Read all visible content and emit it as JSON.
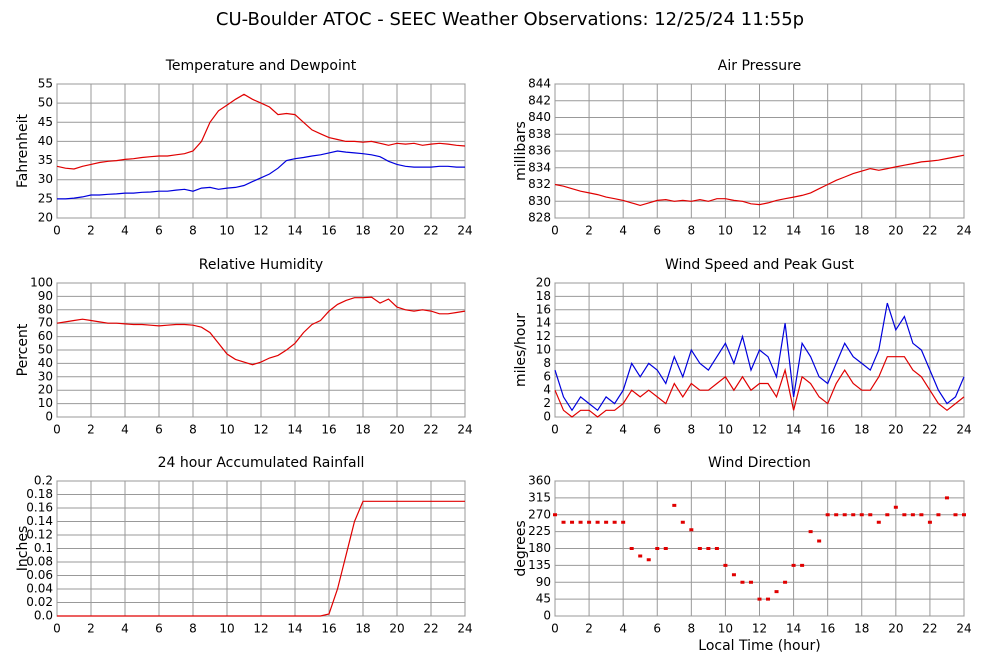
{
  "title": "CU-Boulder ATOC - SEEC Weather Observations: 12/25/24 11:55p",
  "chart_data": [
    {
      "type": "line",
      "title": "Temperature and Dewpoint",
      "ylabel": "Fahrenheit",
      "x": [
        0,
        0.5,
        1,
        1.5,
        2,
        2.5,
        3,
        3.5,
        4,
        4.5,
        5,
        5.5,
        6,
        6.5,
        7,
        7.5,
        8,
        8.5,
        9,
        9.5,
        10,
        10.5,
        11,
        11.5,
        12,
        12.5,
        13,
        13.5,
        14,
        14.5,
        15,
        15.5,
        16,
        16.5,
        17,
        17.5,
        18,
        18.5,
        19,
        19.5,
        20,
        20.5,
        21,
        21.5,
        22,
        22.5,
        23,
        23.5,
        24
      ],
      "series": [
        {
          "color": "#e00000",
          "values": [
            33.5,
            33,
            32.8,
            33.5,
            34,
            34.5,
            34.8,
            35,
            35.3,
            35.5,
            35.8,
            36,
            36.2,
            36.2,
            36.5,
            36.8,
            37.5,
            40,
            45,
            48,
            49.5,
            51,
            52.3,
            51,
            50,
            49,
            47,
            47.3,
            47,
            45,
            43,
            42,
            41,
            40.5,
            40,
            40,
            39.8,
            40,
            39.5,
            39,
            39.5,
            39.3,
            39.5,
            39,
            39.3,
            39.5,
            39.3,
            39,
            38.8
          ]
        },
        {
          "color": "#0000dd",
          "values": [
            25,
            25,
            25.2,
            25.5,
            26,
            26,
            26.2,
            26.3,
            26.5,
            26.5,
            26.7,
            26.8,
            27,
            27,
            27.3,
            27.5,
            27,
            27.8,
            28,
            27.5,
            27.8,
            28,
            28.5,
            29.5,
            30.5,
            31.5,
            33,
            35,
            35.5,
            35.8,
            36.2,
            36.5,
            37,
            37.5,
            37.2,
            37,
            36.8,
            36.5,
            36,
            34.8,
            34,
            33.5,
            33.3,
            33.3,
            33.3,
            33.5,
            33.5,
            33.3,
            33.3
          ]
        }
      ],
      "xlim": [
        0,
        24
      ],
      "xticks": [
        0,
        2,
        4,
        6,
        8,
        10,
        12,
        14,
        16,
        18,
        20,
        22,
        24
      ],
      "ylim": [
        20,
        55
      ],
      "yticks": [
        20,
        25,
        30,
        35,
        40,
        45,
        50,
        55
      ],
      "grid": true
    },
    {
      "type": "line",
      "title": "Air Pressure",
      "ylabel": "millibars",
      "x": [
        0,
        0.5,
        1,
        1.5,
        2,
        2.5,
        3,
        3.5,
        4,
        4.5,
        5,
        5.5,
        6,
        6.5,
        7,
        7.5,
        8,
        8.5,
        9,
        9.5,
        10,
        10.5,
        11,
        11.5,
        12,
        12.5,
        13,
        13.5,
        14,
        14.5,
        15,
        15.5,
        16,
        16.5,
        17,
        17.5,
        18,
        18.5,
        19,
        19.5,
        20,
        20.5,
        21,
        21.5,
        22,
        22.5,
        23,
        23.5,
        24
      ],
      "series": [
        {
          "color": "#e00000",
          "values": [
            832,
            831.8,
            831.5,
            831.2,
            831,
            830.8,
            830.5,
            830.3,
            830.1,
            829.8,
            829.5,
            829.8,
            830.1,
            830.2,
            830,
            830.1,
            830,
            830.2,
            830,
            830.3,
            830.3,
            830.1,
            830,
            829.7,
            829.6,
            829.8,
            830.1,
            830.3,
            830.5,
            830.7,
            831,
            831.5,
            832,
            832.5,
            832.9,
            833.3,
            833.6,
            833.9,
            833.7,
            833.9,
            834.1,
            834.3,
            834.5,
            834.7,
            834.8,
            834.9,
            835.1,
            835.3,
            835.5
          ]
        }
      ],
      "xlim": [
        0,
        24
      ],
      "xticks": [
        0,
        2,
        4,
        6,
        8,
        10,
        12,
        14,
        16,
        18,
        20,
        22,
        24
      ],
      "ylim": [
        828,
        844
      ],
      "yticks": [
        828,
        830,
        832,
        834,
        836,
        838,
        840,
        842,
        844
      ],
      "grid": true
    },
    {
      "type": "line",
      "title": "Relative Humidity",
      "ylabel": "Percent",
      "x": [
        0,
        0.5,
        1,
        1.5,
        2,
        2.5,
        3,
        3.5,
        4,
        4.5,
        5,
        5.5,
        6,
        6.5,
        7,
        7.5,
        8,
        8.5,
        9,
        9.5,
        10,
        10.5,
        11,
        11.5,
        12,
        12.5,
        13,
        13.5,
        14,
        14.5,
        15,
        15.5,
        16,
        16.5,
        17,
        17.5,
        18,
        18.5,
        19,
        19.5,
        20,
        20.5,
        21,
        21.5,
        22,
        22.5,
        23,
        23.5,
        24
      ],
      "series": [
        {
          "color": "#e00000",
          "values": [
            70,
            71,
            72,
            73,
            72,
            71,
            70,
            70,
            69.5,
            69,
            69,
            68.5,
            68,
            68.5,
            69,
            69,
            68.5,
            67,
            63,
            55,
            47,
            43,
            41,
            39,
            41,
            44,
            46,
            50,
            55,
            63,
            69,
            72,
            79,
            84,
            87,
            89,
            89,
            89.5,
            85,
            88,
            82,
            80,
            79,
            80,
            79,
            77,
            77,
            78,
            79
          ]
        }
      ],
      "xlim": [
        0,
        24
      ],
      "xticks": [
        0,
        2,
        4,
        6,
        8,
        10,
        12,
        14,
        16,
        18,
        20,
        22,
        24
      ],
      "ylim": [
        0,
        100
      ],
      "yticks": [
        0,
        10,
        20,
        30,
        40,
        50,
        60,
        70,
        80,
        90,
        100
      ],
      "grid": true
    },
    {
      "type": "line",
      "title": "Wind Speed and Peak Gust",
      "ylabel": "miles/hour",
      "x": [
        0,
        0.5,
        1,
        1.5,
        2,
        2.5,
        3,
        3.5,
        4,
        4.5,
        5,
        5.5,
        6,
        6.5,
        7,
        7.5,
        8,
        8.5,
        9,
        9.5,
        10,
        10.5,
        11,
        11.5,
        12,
        12.5,
        13,
        13.5,
        14,
        14.5,
        15,
        15.5,
        16,
        16.5,
        17,
        17.5,
        18,
        18.5,
        19,
        19.5,
        20,
        20.5,
        21,
        21.5,
        22,
        22.5,
        23,
        23.5,
        24
      ],
      "series": [
        {
          "color": "#0000dd",
          "values": [
            7,
            3,
            1,
            3,
            2,
            1,
            3,
            2,
            4,
            8,
            6,
            8,
            7,
            5,
            9,
            6,
            10,
            8,
            7,
            9,
            11,
            8,
            12,
            7,
            10,
            9,
            6,
            14,
            3,
            11,
            9,
            6,
            5,
            8,
            11,
            9,
            8,
            7,
            10,
            17,
            13,
            15,
            11,
            10,
            7,
            4,
            2,
            3,
            6
          ]
        },
        {
          "color": "#e00000",
          "values": [
            4,
            1,
            0,
            1,
            1,
            0,
            1,
            1,
            2,
            4,
            3,
            4,
            3,
            2,
            5,
            3,
            5,
            4,
            4,
            5,
            6,
            4,
            6,
            4,
            5,
            5,
            3,
            7,
            1,
            6,
            5,
            3,
            2,
            5,
            7,
            5,
            4,
            4,
            6,
            9,
            9,
            9,
            7,
            6,
            4,
            2,
            1,
            2,
            3
          ]
        }
      ],
      "xlim": [
        0,
        24
      ],
      "xticks": [
        0,
        2,
        4,
        6,
        8,
        10,
        12,
        14,
        16,
        18,
        20,
        22,
        24
      ],
      "ylim": [
        0,
        20
      ],
      "yticks": [
        0,
        2,
        4,
        6,
        8,
        10,
        12,
        14,
        16,
        18,
        20
      ],
      "grid": true
    },
    {
      "type": "line",
      "title": "24 hour Accumulated Rainfall",
      "ylabel": "Inches",
      "x": [
        0,
        0.5,
        1,
        1.5,
        2,
        2.5,
        3,
        3.5,
        4,
        4.5,
        5,
        5.5,
        6,
        6.5,
        7,
        7.5,
        8,
        8.5,
        9,
        9.5,
        10,
        10.5,
        11,
        11.5,
        12,
        12.5,
        13,
        13.5,
        14,
        14.5,
        15,
        15.5,
        16,
        16.5,
        17,
        17.5,
        18,
        18.5,
        19,
        19.5,
        20,
        20.5,
        21,
        21.5,
        22,
        22.5,
        23,
        23.5,
        24
      ],
      "series": [
        {
          "color": "#e00000",
          "values": [
            0,
            0,
            0,
            0,
            0,
            0,
            0,
            0,
            0,
            0,
            0,
            0,
            0,
            0,
            0,
            0,
            0,
            0,
            0,
            0,
            0,
            0,
            0,
            0,
            0,
            0,
            0,
            0,
            0,
            0,
            0,
            0,
            0.003,
            0.04,
            0.09,
            0.14,
            0.17,
            0.17,
            0.17,
            0.17,
            0.17,
            0.17,
            0.17,
            0.17,
            0.17,
            0.17,
            0.17,
            0.17,
            0.17
          ]
        }
      ],
      "xlim": [
        0,
        24
      ],
      "xticks": [
        0,
        2,
        4,
        6,
        8,
        10,
        12,
        14,
        16,
        18,
        20,
        22,
        24
      ],
      "ylim": [
        0,
        0.2
      ],
      "yticks": [
        {
          "value": 0,
          "label": "0.0"
        },
        0.02,
        0.04,
        0.06,
        0.08,
        0.1,
        0.12,
        0.14,
        0.16,
        0.18,
        0.2
      ],
      "grid": true
    },
    {
      "type": "scatter",
      "title": "Wind Direction",
      "ylabel": "degrees",
      "xlabel": "Local Time (hour)",
      "x": [
        0,
        0.5,
        1,
        1.5,
        2,
        2.5,
        3,
        3.5,
        4,
        4.5,
        5,
        5.5,
        6,
        6.5,
        7,
        7.5,
        8,
        8.5,
        9,
        9.5,
        10,
        10.5,
        11,
        11.5,
        12,
        12.5,
        13,
        13.5,
        14,
        14.5,
        15,
        15.5,
        16,
        16.5,
        17,
        17.5,
        18,
        18.5,
        19,
        19.5,
        20,
        20.5,
        21,
        21.5,
        22,
        22.5,
        23,
        23.5,
        24
      ],
      "series": [
        {
          "color": "#e00000",
          "values": [
            270,
            250,
            250,
            250,
            250,
            250,
            250,
            250,
            250,
            180,
            160,
            150,
            180,
            180,
            295,
            250,
            230,
            180,
            180,
            180,
            135,
            110,
            90,
            90,
            45,
            45,
            65,
            90,
            135,
            135,
            225,
            200,
            270,
            270,
            270,
            270,
            270,
            270,
            250,
            270,
            290,
            270,
            270,
            270,
            250,
            270,
            315,
            270,
            270
          ]
        }
      ],
      "xlim": [
        0,
        24
      ],
      "xticks": [
        0,
        2,
        4,
        6,
        8,
        10,
        12,
        14,
        16,
        18,
        20,
        22,
        24
      ],
      "ylim": [
        0,
        360
      ],
      "yticks": [
        0,
        45,
        90,
        135,
        180,
        225,
        270,
        315,
        360
      ],
      "grid": true
    }
  ]
}
